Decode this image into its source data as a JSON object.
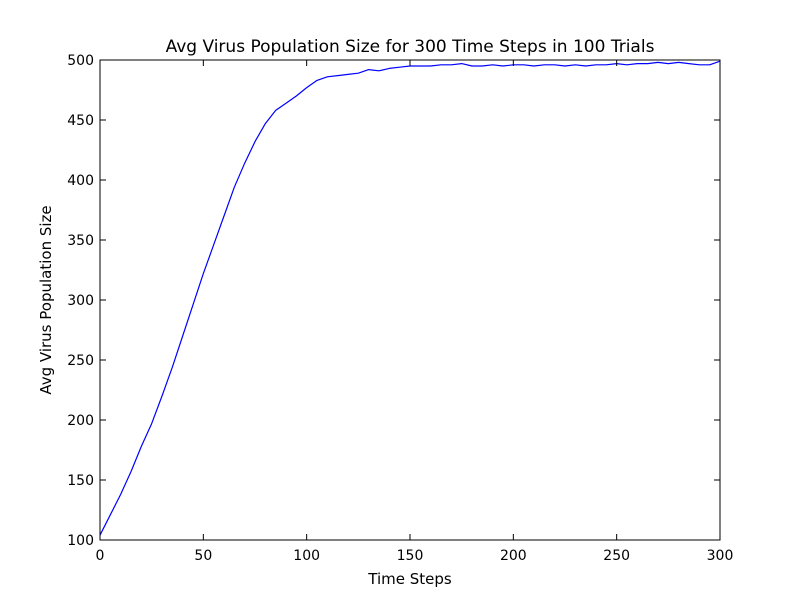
{
  "chart_data": {
    "type": "line",
    "title": "Avg Virus Population Size for 300 Time Steps in 100 Trials",
    "xlabel": "Time Steps",
    "ylabel": "Avg Virus Population Size",
    "xlim": [
      0,
      300
    ],
    "ylim": [
      100,
      500
    ],
    "xticks": [
      0,
      50,
      100,
      150,
      200,
      250,
      300
    ],
    "yticks": [
      100,
      150,
      200,
      250,
      300,
      350,
      400,
      450,
      500
    ],
    "grid": false,
    "colors": {
      "line": "#0000ff"
    },
    "series": [
      {
        "x": [
          0,
          5,
          10,
          15,
          20,
          25,
          30,
          35,
          40,
          45,
          50,
          55,
          60,
          65,
          70,
          75,
          80,
          85,
          90,
          95,
          100,
          105,
          110,
          115,
          120,
          125,
          130,
          135,
          140,
          145,
          150,
          155,
          160,
          165,
          170,
          175,
          180,
          185,
          190,
          195,
          200,
          205,
          210,
          215,
          220,
          225,
          230,
          235,
          240,
          245,
          250,
          255,
          260,
          265,
          270,
          275,
          280,
          285,
          290,
          295,
          300
        ],
        "y": [
          104,
          121,
          138,
          157,
          178,
          197,
          220,
          244,
          270,
          296,
          322,
          346,
          370,
          394,
          414,
          432,
          447,
          458,
          464,
          470,
          477,
          483,
          486,
          487,
          488,
          489,
          492,
          491,
          493,
          494,
          495,
          495,
          495,
          496,
          496,
          497,
          495,
          495,
          496,
          495,
          496,
          496,
          495,
          496,
          496,
          495,
          496,
          495,
          496,
          496,
          497,
          496,
          497,
          497,
          498,
          497,
          498,
          497,
          496,
          496,
          499
        ]
      }
    ]
  }
}
